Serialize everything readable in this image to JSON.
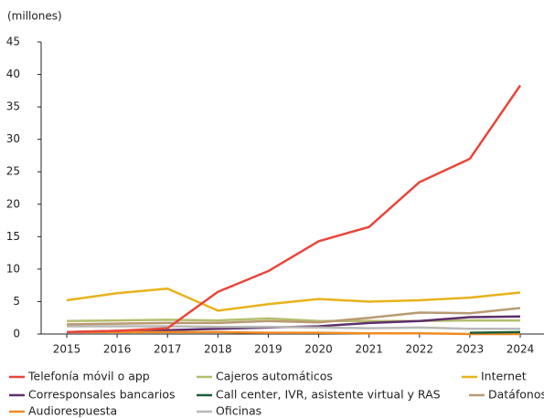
{
  "chart_data": {
    "type": "line",
    "y_label": "(millones)",
    "categories": [
      "2015",
      "2016",
      "2017",
      "2018",
      "2019",
      "2020",
      "2021",
      "2022",
      "2023",
      "2024"
    ],
    "ylim": [
      0,
      45
    ],
    "yticks": [
      0,
      5,
      10,
      15,
      20,
      25,
      30,
      35,
      40,
      45
    ],
    "grid": false,
    "series": [
      {
        "name": "Telefonía móvil o app",
        "color": "#e8463a",
        "values": [
          0.3,
          0.5,
          0.9,
          6.5,
          9.7,
          14.3,
          16.5,
          23.4,
          27.0,
          38.3
        ]
      },
      {
        "name": "Cajeros automáticos",
        "color": "#b5bd6f",
        "values": [
          2.0,
          2.1,
          2.2,
          2.1,
          2.4,
          2.0,
          2.0,
          2.0,
          2.1,
          2.1
        ]
      },
      {
        "name": "Internet",
        "color": "#e8b21a",
        "values": [
          5.2,
          6.3,
          7.0,
          3.6,
          4.6,
          5.4,
          5.0,
          5.2,
          5.6,
          6.4
        ]
      },
      {
        "name": "Corresponsales bancarios",
        "color": "#5e2f6b",
        "values": [
          0.3,
          0.5,
          0.6,
          0.8,
          1.0,
          1.2,
          1.7,
          2.0,
          2.6,
          2.7
        ]
      },
      {
        "name": "Call center, IVR, asistente virtual y RAS",
        "color": "#1c5e3a",
        "values": [
          null,
          null,
          null,
          null,
          null,
          null,
          null,
          null,
          0.2,
          0.3
        ]
      },
      {
        "name": "Datáfonos",
        "color": "#b89a72",
        "values": [
          1.5,
          1.6,
          1.7,
          1.7,
          2.0,
          1.8,
          2.5,
          3.3,
          3.2,
          4.0
        ]
      },
      {
        "name": "Audiorespuesta",
        "color": "#f08a24",
        "values": [
          0.3,
          0.3,
          0.3,
          0.3,
          0.2,
          0.2,
          0.1,
          0.1,
          0.0,
          0.0
        ]
      },
      {
        "name": "Oficinas",
        "color": "#b9b9b9",
        "values": [
          1.2,
          1.2,
          1.2,
          1.1,
          1.1,
          1.0,
          0.9,
          1.0,
          0.8,
          0.8
        ]
      }
    ]
  }
}
